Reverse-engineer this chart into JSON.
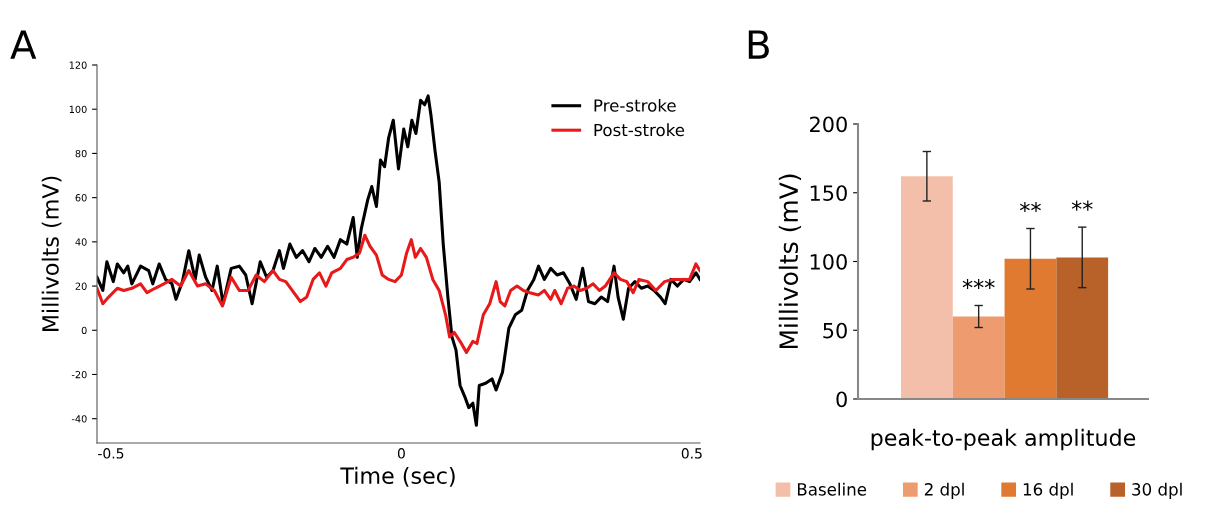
{
  "chart_data": [
    {
      "type": "line",
      "title": "A",
      "xlabel": "Time (sec)",
      "ylabel": "Millivolts (mV)",
      "xlim": [
        -0.524,
        0.514
      ],
      "ylim": [
        -51,
        120
      ],
      "xticks": [
        -0.5,
        0,
        0.5
      ],
      "yticks": [
        -40,
        -20,
        0,
        20,
        40,
        60,
        80,
        100,
        120
      ],
      "legend": "top right",
      "grid": false,
      "series": [
        {
          "name": "Pre-stroke",
          "color": "#000000",
          "x": [
            -0.524,
            -0.514,
            -0.507,
            -0.496,
            -0.489,
            -0.478,
            -0.471,
            -0.464,
            -0.449,
            -0.435,
            -0.428,
            -0.417,
            -0.406,
            -0.395,
            -0.388,
            -0.377,
            -0.366,
            -0.355,
            -0.348,
            -0.337,
            -0.326,
            -0.317,
            -0.307,
            -0.293,
            -0.279,
            -0.268,
            -0.257,
            -0.243,
            -0.232,
            -0.221,
            -0.21,
            -0.203,
            -0.192,
            -0.181,
            -0.17,
            -0.159,
            -0.149,
            -0.138,
            -0.127,
            -0.116,
            -0.105,
            -0.094,
            -0.083,
            -0.076,
            -0.069,
            -0.058,
            -0.051,
            -0.043,
            -0.036,
            -0.029,
            -0.022,
            -0.014,
            -0.005,
            0.004,
            0.011,
            0.018,
            0.025,
            0.033,
            0.04,
            0.046,
            0.051,
            0.058,
            0.065,
            0.072,
            0.08,
            0.087,
            0.094,
            0.101,
            0.109,
            0.116,
            0.123,
            0.129,
            0.134,
            0.145,
            0.156,
            0.163,
            0.174,
            0.185,
            0.196,
            0.207,
            0.217,
            0.228,
            0.236,
            0.246,
            0.257,
            0.268,
            0.279,
            0.29,
            0.301,
            0.312,
            0.322,
            0.333,
            0.344,
            0.355,
            0.366,
            0.373,
            0.382,
            0.391,
            0.402,
            0.413,
            0.424,
            0.435,
            0.446,
            0.454,
            0.464,
            0.475,
            0.486,
            0.496,
            0.507,
            0.514
          ],
          "values": [
            24,
            18,
            31,
            22,
            30,
            26,
            29,
            21,
            29,
            27,
            21,
            30,
            23,
            21,
            14,
            22,
            36,
            23,
            34,
            24,
            18,
            29,
            12,
            28,
            29,
            25,
            12,
            31,
            24,
            27,
            36,
            28,
            39,
            33,
            36,
            31,
            37,
            33,
            38,
            33,
            41,
            39,
            51,
            33,
            46,
            59,
            65,
            56,
            77,
            74,
            87,
            95,
            73,
            91,
            83,
            95,
            89,
            104,
            102,
            106,
            97,
            81,
            67,
            39,
            15,
            -3,
            -9,
            -25,
            -30,
            -35,
            -33,
            -43,
            -25,
            -24,
            -22,
            -27,
            -19,
            1,
            7,
            9,
            18,
            23,
            29,
            23,
            28,
            25,
            26,
            21,
            14,
            28,
            13,
            12,
            15,
            13,
            29,
            15,
            5,
            19,
            22,
            19,
            20,
            18,
            15,
            12,
            23,
            20,
            23,
            22,
            26,
            23
          ]
        },
        {
          "name": "Post-stroke",
          "color": "#e8191a",
          "x": [
            -0.524,
            -0.514,
            -0.504,
            -0.489,
            -0.478,
            -0.464,
            -0.449,
            -0.438,
            -0.424,
            -0.409,
            -0.395,
            -0.38,
            -0.366,
            -0.351,
            -0.337,
            -0.322,
            -0.308,
            -0.293,
            -0.279,
            -0.264,
            -0.25,
            -0.236,
            -0.221,
            -0.21,
            -0.199,
            -0.188,
            -0.174,
            -0.163,
            -0.152,
            -0.141,
            -0.13,
            -0.12,
            -0.105,
            -0.094,
            -0.083,
            -0.072,
            -0.063,
            -0.054,
            -0.043,
            -0.033,
            -0.022,
            -0.011,
            0.0,
            0.009,
            0.017,
            0.024,
            0.033,
            0.043,
            0.054,
            0.065,
            0.076,
            0.083,
            0.091,
            0.101,
            0.112,
            0.123,
            0.13,
            0.141,
            0.152,
            0.163,
            0.17,
            0.178,
            0.188,
            0.199,
            0.21,
            0.221,
            0.236,
            0.246,
            0.257,
            0.264,
            0.275,
            0.286,
            0.297,
            0.308,
            0.319,
            0.33,
            0.341,
            0.351,
            0.366,
            0.377,
            0.388,
            0.399,
            0.409,
            0.424,
            0.438,
            0.453,
            0.467,
            0.482,
            0.496,
            0.507,
            0.514
          ],
          "values": [
            19,
            12,
            15,
            19,
            18,
            19,
            21,
            17,
            19,
            21,
            23,
            20,
            27,
            20,
            21,
            18,
            11,
            24,
            18,
            18,
            25,
            22,
            27,
            23,
            22,
            18,
            13,
            15,
            23,
            26,
            20,
            26,
            28,
            32,
            33,
            35,
            43,
            38,
            34,
            25,
            23,
            22,
            25,
            35,
            41,
            33,
            37,
            33,
            23,
            18,
            7,
            -3,
            -1,
            -5,
            -10,
            -5,
            -6,
            7,
            12,
            22,
            13,
            11,
            18,
            20,
            18,
            17,
            16,
            18,
            14,
            18,
            12,
            19,
            20,
            18,
            19,
            21,
            18,
            20,
            26,
            23,
            22,
            17,
            23,
            22,
            18,
            22,
            23,
            23,
            23,
            30,
            27
          ]
        }
      ]
    },
    {
      "type": "bar",
      "title": "B",
      "xlabel": "peak-to-peak amplitude",
      "ylabel": "Millivolts (mV)",
      "categories": [
        null
      ],
      "ylim": [
        0,
        200
      ],
      "yticks": [
        0,
        50,
        100,
        150,
        200
      ],
      "legend": "bottom",
      "grid": false,
      "annotations": [
        "***",
        "**",
        "**"
      ],
      "series": [
        {
          "name": "Baseline",
          "color": "#f4bfaa",
          "values": [
            162
          ],
          "errors": [
            18
          ]
        },
        {
          "name": "2 dpl",
          "color": "#ee9b70",
          "values": [
            60
          ],
          "errors": [
            8
          ]
        },
        {
          "name": "16 dpl",
          "color": "#e07a30",
          "values": [
            102
          ],
          "errors": [
            22
          ]
        },
        {
          "name": "30 dpl",
          "color": "#b8622a",
          "values": [
            103
          ],
          "errors": [
            22
          ]
        }
      ]
    }
  ]
}
